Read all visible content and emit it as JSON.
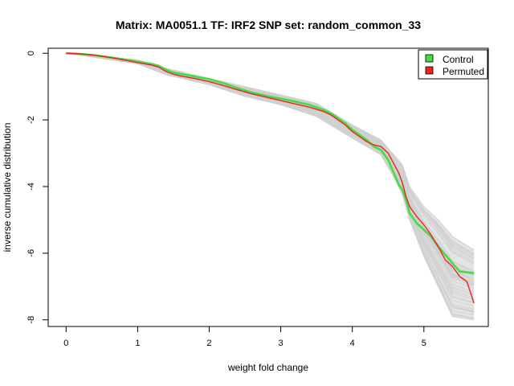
{
  "chart_data": {
    "type": "line",
    "title": "Matrix: MA0051.1 TF: IRF2 SNP set: random_common_33",
    "xlabel": "weight fold change",
    "ylabel": "inverse cumulative distribution",
    "xlim": [
      -0.25,
      5.9
    ],
    "ylim": [
      -8.2,
      0.15
    ],
    "x_ticks": [
      0,
      1,
      2,
      3,
      4,
      5
    ],
    "y_ticks": [
      0,
      -2,
      -4,
      -6,
      -8
    ],
    "legend_position": "top-right",
    "grid": false,
    "background_color": "#d0d0d0",
    "series": [
      {
        "name": "Control",
        "color": "#44dd44",
        "x": [
          0,
          0.2,
          0.4,
          0.6,
          0.8,
          1.0,
          1.2,
          1.3,
          1.4,
          1.5,
          1.6,
          1.8,
          2.0,
          2.2,
          2.4,
          2.6,
          2.8,
          3.0,
          3.2,
          3.4,
          3.6,
          3.7,
          3.8,
          3.9,
          4.0,
          4.1,
          4.2,
          4.3,
          4.4,
          4.5,
          4.6,
          4.65,
          4.7,
          4.75,
          4.8,
          4.9,
          5.0,
          5.1,
          5.2,
          5.3,
          5.4,
          5.5,
          5.7
        ],
        "values": [
          0,
          -0.02,
          -0.06,
          -0.12,
          -0.18,
          -0.25,
          -0.32,
          -0.38,
          -0.5,
          -0.58,
          -0.62,
          -0.7,
          -0.78,
          -0.9,
          -1.05,
          -1.18,
          -1.28,
          -1.36,
          -1.45,
          -1.55,
          -1.7,
          -1.8,
          -1.95,
          -2.1,
          -2.3,
          -2.45,
          -2.6,
          -2.8,
          -2.9,
          -3.2,
          -3.7,
          -3.95,
          -4.1,
          -4.4,
          -4.8,
          -5.1,
          -5.3,
          -5.5,
          -5.8,
          -6.05,
          -6.3,
          -6.55,
          -6.6
        ]
      },
      {
        "name": "Permuted",
        "color": "#ee2222",
        "x": [
          0,
          0.2,
          0.4,
          0.6,
          0.8,
          1.0,
          1.2,
          1.3,
          1.4,
          1.5,
          1.6,
          1.8,
          2.0,
          2.2,
          2.4,
          2.6,
          2.8,
          3.0,
          3.2,
          3.4,
          3.6,
          3.7,
          3.8,
          3.9,
          4.0,
          4.1,
          4.2,
          4.3,
          4.4,
          4.5,
          4.6,
          4.65,
          4.7,
          4.75,
          4.8,
          4.9,
          5.0,
          5.1,
          5.2,
          5.3,
          5.4,
          5.5,
          5.6,
          5.7
        ],
        "values": [
          0,
          -0.02,
          -0.06,
          -0.12,
          -0.2,
          -0.28,
          -0.36,
          -0.42,
          -0.55,
          -0.63,
          -0.68,
          -0.76,
          -0.85,
          -0.97,
          -1.1,
          -1.22,
          -1.32,
          -1.42,
          -1.52,
          -1.62,
          -1.75,
          -1.85,
          -2.0,
          -2.15,
          -2.35,
          -2.5,
          -2.65,
          -2.75,
          -2.8,
          -3.0,
          -3.4,
          -3.6,
          -3.9,
          -4.3,
          -4.6,
          -4.9,
          -5.15,
          -5.45,
          -5.8,
          -6.2,
          -6.4,
          -6.7,
          -6.85,
          -7.5
        ]
      }
    ],
    "background_bands": [
      {
        "x": [
          0,
          1,
          1.4,
          2,
          2.5,
          3,
          3.5,
          4,
          4.4,
          4.6,
          4.7,
          4.8,
          5.0,
          5.2,
          5.4,
          5.7
        ],
        "upper": [
          0,
          -0.2,
          -0.45,
          -0.75,
          -1.0,
          -1.25,
          -1.5,
          -2.15,
          -2.6,
          -3.1,
          -3.35,
          -4.0,
          -4.6,
          -5.0,
          -5.5,
          -5.9
        ],
        "lower": [
          0,
          -0.32,
          -0.65,
          -0.95,
          -1.3,
          -1.55,
          -1.9,
          -2.55,
          -3.05,
          -3.8,
          -4.25,
          -5.0,
          -6.1,
          -7.0,
          -7.9,
          -8.0
        ]
      }
    ],
    "legend": [
      {
        "label": "Control",
        "color": "#44dd44"
      },
      {
        "label": "Permuted",
        "color": "#ee2222"
      }
    ]
  }
}
